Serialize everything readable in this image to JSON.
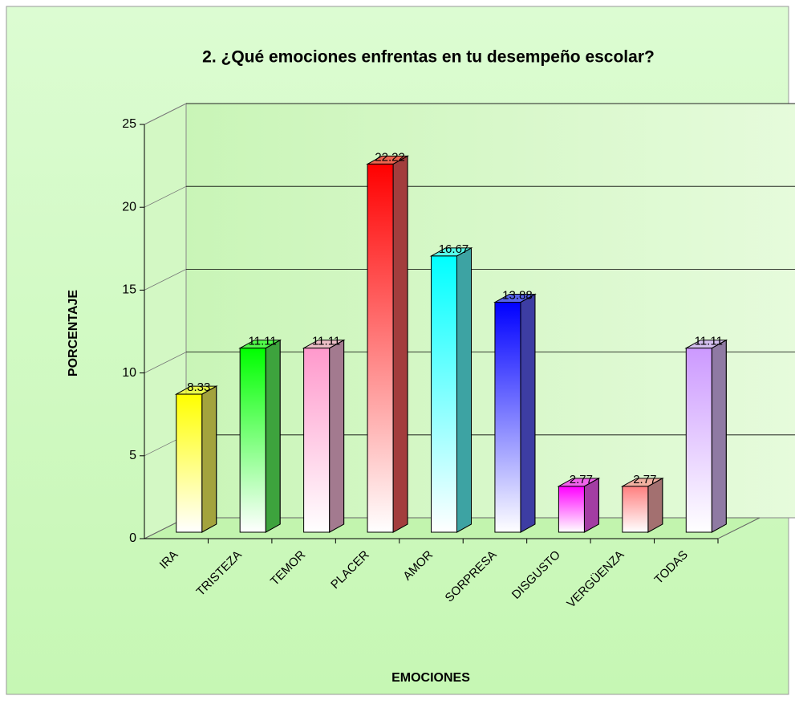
{
  "chart_data": {
    "type": "bar3d",
    "title": "2. ¿Qué emociones enfrentas en tu desempeño escolar?",
    "xlabel": "EMOCIONES",
    "ylabel": "PORCENTAJE",
    "categories": [
      "IRA",
      "TRISTEZA",
      "TEMOR",
      "PLACER",
      "AMOR",
      "SORPRESA",
      "DISGUSTO",
      "VERGÜENZA",
      "TODAS"
    ],
    "values": [
      8.33,
      11.11,
      11.11,
      22.22,
      16.67,
      13.88,
      2.77,
      2.77,
      11.11
    ],
    "colors": [
      "#ffff00",
      "#00ff00",
      "#ff99cc",
      "#ff0000",
      "#00ffff",
      "#0000ff",
      "#ff00ff",
      "#ff8080",
      "#cc99ff"
    ],
    "ylim": [
      0,
      25
    ],
    "yticks": [
      0,
      5,
      10,
      15,
      20,
      25
    ],
    "grid": true
  }
}
